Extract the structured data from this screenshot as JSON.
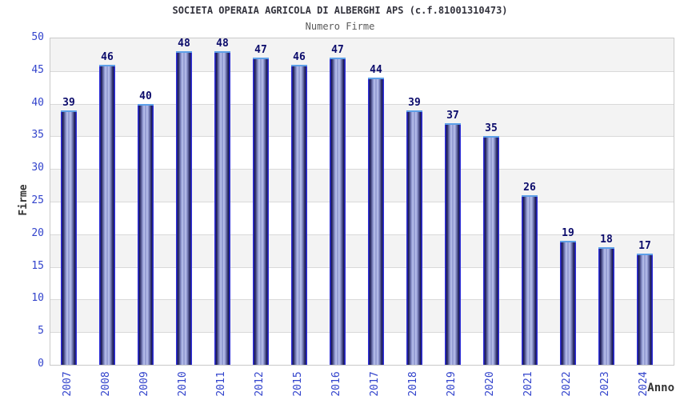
{
  "chart_data": {
    "type": "bar",
    "title": "SOCIETA OPERAIA AGRICOLA DI ALBERGHI APS (c.f.81001310473)",
    "subtitle": "Numero Firme",
    "xlabel": "Anno",
    "ylabel": "Firme",
    "categories": [
      "2007",
      "2008",
      "2009",
      "2010",
      "2011",
      "2012",
      "2015",
      "2016",
      "2017",
      "2018",
      "2019",
      "2020",
      "2021",
      "2022",
      "2023",
      "2024"
    ],
    "values": [
      39,
      46,
      40,
      48,
      48,
      47,
      46,
      47,
      44,
      39,
      37,
      35,
      26,
      19,
      18,
      17
    ],
    "ylim": [
      0,
      50
    ],
    "ytick_step": 5,
    "yticks": [
      0,
      5,
      10,
      15,
      20,
      25,
      30,
      35,
      40,
      45,
      50
    ],
    "grid": true,
    "alternating_bands": true,
    "legend": "none",
    "bar_value_labels_shown": true
  },
  "colors": {
    "title": "#33333d",
    "subtitle": "#5a5a5a",
    "tick_label": "#3344cc",
    "value_label": "#0b0b6b",
    "axis_title": "#333333",
    "bar_edge": "#2e2ed6",
    "bar_dark": "#15154e",
    "bar_light1": "#9ba3da",
    "bar_light2": "#bcc3ec",
    "bar_mid": "#858dc9",
    "bar_cap": "#5ea0e8",
    "band_gray": "#f3f3f3",
    "grid_line": "#d9d9d9",
    "plot_border": "#c9c9c9"
  }
}
